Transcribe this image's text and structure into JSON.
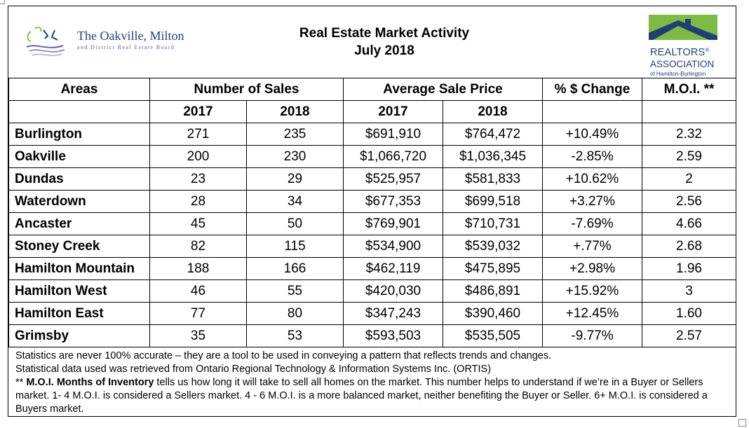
{
  "header": {
    "title_line1": "Real Estate Market Activity",
    "title_line2": "July 2018",
    "board_logo": {
      "name": "The Oakville, Milton",
      "subtitle": "and District Real Estate Board"
    },
    "realtors_logo": {
      "line1": "REALTORS",
      "reg_mark": "®",
      "line2": "ASSOCIATION",
      "line3": "of Hamilton-Burlington"
    }
  },
  "table": {
    "headers": {
      "areas": "Areas",
      "sales": "Number of Sales",
      "price": "Average Sale Price",
      "change": "% $ Change",
      "moi": "M.O.I. **"
    },
    "subheaders": {
      "sales_2017": "2017",
      "sales_2018": "2018",
      "price_2017": "2017",
      "price_2018": "2018"
    },
    "rows": [
      {
        "area": "Burlington",
        "sales_2017": "271",
        "sales_2018": "235",
        "price_2017": "$691,910",
        "price_2018": "$764,472",
        "change": "+10.49%",
        "moi": "2.32"
      },
      {
        "area": "Oakville",
        "sales_2017": "200",
        "sales_2018": "230",
        "price_2017": "$1,066,720",
        "price_2018": "$1,036,345",
        "change": "-2.85%",
        "moi": "2.59"
      },
      {
        "area": "Dundas",
        "sales_2017": "23",
        "sales_2018": "29",
        "price_2017": "$525,957",
        "price_2018": "$581,833",
        "change": "+10.62%",
        "moi": "2"
      },
      {
        "area": "Waterdown",
        "sales_2017": "28",
        "sales_2018": "34",
        "price_2017": "$677,353",
        "price_2018": "$699,518",
        "change": "+3.27%",
        "moi": "2.56"
      },
      {
        "area": "Ancaster",
        "sales_2017": "45",
        "sales_2018": "50",
        "price_2017": "$769,901",
        "price_2018": "$710,731",
        "change": "-7.69%",
        "moi": "4.66"
      },
      {
        "area": "Stoney Creek",
        "sales_2017": "82",
        "sales_2018": "115",
        "price_2017": "$534,900",
        "price_2018": "$539,032",
        "change": "+.77%",
        "moi": "2.68"
      },
      {
        "area": "Hamilton Mountain",
        "sales_2017": "188",
        "sales_2018": "166",
        "price_2017": "$462,119",
        "price_2018": "$475,895",
        "change": "+2.98%",
        "moi": "1.96"
      },
      {
        "area": "Hamilton West",
        "sales_2017": "46",
        "sales_2018": "55",
        "price_2017": "$420,030",
        "price_2018": "$486,891",
        "change": "+15.92%",
        "moi": "3"
      },
      {
        "area": "Hamilton East",
        "sales_2017": "77",
        "sales_2018": "80",
        "price_2017": "$347,243",
        "price_2018": "$390,460",
        "change": "+12.45%",
        "moi": "1.60"
      },
      {
        "area": "Grimsby",
        "sales_2017": "35",
        "sales_2018": "53",
        "price_2017": "$593,503",
        "price_2018": "$535,505",
        "change": "-9.77%",
        "moi": "2.57"
      }
    ]
  },
  "notes": {
    "line1": "Statistics are never 100% accurate – they are a tool to be used in conveying a pattern that reflects trends and changes.",
    "line2": "Statistical data used was retrieved from Ontario Regional Technology & Information Systems Inc. (ORTIS)",
    "line3_prefix": "** ",
    "line3_bold": "M.O.I. Months of Inventory",
    "line3_rest": " tells us how long it will take to sell all homes on the market. This number helps to understand if we’re in a Buyer or Sellers market. 1- 4 M.O.I. is considered a Sellers market. 4 - 6 M.O.I. is a more balanced market, neither benefiting the Buyer or Seller. 6+ M.O.I. is considered a Buyers market."
  },
  "colors": {
    "board_blue": "#1f3f7a",
    "realtors_green": "#7dbb42",
    "realtors_navy": "#1f3f7a",
    "swirl_green": "#8cc63f",
    "swirl_purple": "#6b5ea8"
  }
}
